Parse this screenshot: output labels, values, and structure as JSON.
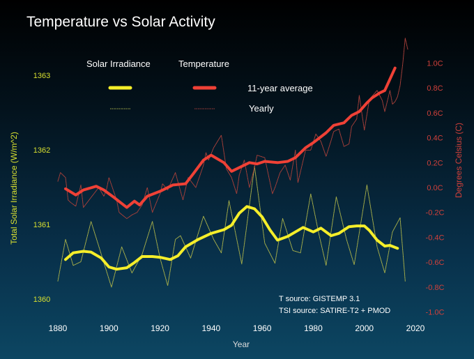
{
  "chart_data": {
    "type": "line",
    "title": "Temperature vs Solar Activity",
    "xlabel": "Year",
    "ylabel_left": "Total Solar Irradiance (W/m^2)",
    "ylabel_right": "Degrees Celsius (C)",
    "xlim": [
      1875,
      2020
    ],
    "x_ticks": [
      "1880",
      "1900",
      "1920",
      "1940",
      "1960",
      "1980",
      "2000",
      "2020"
    ],
    "ylim_left": [
      1359.8,
      1363.3
    ],
    "y_ticks_left": [
      "1360",
      "1361",
      "1362",
      "1363"
    ],
    "ylim_right": [
      -1.1,
      1.2
    ],
    "y_ticks_right": [
      "1.0C",
      "0.8C",
      "0.6C",
      "0.4C",
      "0.2C",
      "0.0C",
      "-0.2C",
      "-0.4C",
      "-0.6C",
      "-0.8C",
      "-1.0C"
    ],
    "grid": false,
    "legend": {
      "placement": "top-left",
      "col_solar": "Solar Irradiance",
      "col_temp": "Temperature",
      "row_avg": "11-year average",
      "row_yearly": "Yearly"
    },
    "annotations": [
      "T source: GISTEMP 3.1",
      "TSI source: SATIRE-T2 + PMOD"
    ],
    "colors": {
      "solar": "#f5ee2a",
      "solar_yearly": "#a8b04a",
      "temperature": "#ef4136",
      "temperature_yearly": "#a8403a",
      "left_axis": "#d8e030",
      "right_axis": "#d0403a"
    },
    "series": [
      {
        "name": "Solar Irradiance 11-year average",
        "axis": "left",
        "x": [
          1883,
          1886,
          1890,
          1893,
          1897,
          1900,
          1903,
          1907,
          1910,
          1913,
          1917,
          1920,
          1924,
          1927,
          1930,
          1935,
          1940,
          1945,
          1948,
          1951,
          1954,
          1957,
          1960,
          1963,
          1966,
          1970,
          1973,
          1976,
          1980,
          1983,
          1987,
          1990,
          1994,
          1997,
          2000,
          2002,
          2005,
          2008,
          2010,
          2013
        ],
        "y": [
          1360.53,
          1360.62,
          1360.64,
          1360.63,
          1360.55,
          1360.43,
          1360.4,
          1360.42,
          1360.49,
          1360.57,
          1360.57,
          1360.56,
          1360.53,
          1360.58,
          1360.7,
          1360.8,
          1360.88,
          1360.93,
          1360.99,
          1361.15,
          1361.24,
          1361.21,
          1361.1,
          1360.93,
          1360.79,
          1360.84,
          1360.9,
          1360.96,
          1360.9,
          1360.95,
          1360.85,
          1360.88,
          1360.97,
          1360.98,
          1360.98,
          1360.92,
          1360.79,
          1360.71,
          1360.72,
          1360.68
        ]
      },
      {
        "name": "Solar Irradiance Yearly",
        "axis": "left",
        "x": [
          1880,
          1883,
          1886,
          1889,
          1893,
          1897,
          1901,
          1905,
          1909,
          1913,
          1917,
          1920,
          1923,
          1926,
          1928,
          1932,
          1937,
          1941,
          1944,
          1947,
          1952,
          1957,
          1961,
          1965,
          1968,
          1972,
          1975,
          1979,
          1982,
          1985,
          1989,
          1993,
          1996,
          2001,
          2005,
          2008,
          2011,
          2014,
          2016
        ],
        "y": [
          1360.24,
          1360.8,
          1360.45,
          1360.5,
          1361.04,
          1360.6,
          1360.16,
          1360.7,
          1360.35,
          1360.6,
          1361.04,
          1360.55,
          1360.18,
          1360.8,
          1360.85,
          1360.55,
          1361.11,
          1360.8,
          1360.62,
          1361.32,
          1360.47,
          1361.78,
          1360.75,
          1360.48,
          1361.08,
          1360.65,
          1360.62,
          1361.41,
          1360.9,
          1360.45,
          1361.37,
          1360.8,
          1360.46,
          1361.53,
          1360.7,
          1360.35,
          1360.9,
          1361.09,
          1360.24
        ]
      },
      {
        "name": "Temperature 11-year average",
        "axis": "right",
        "x": [
          1883,
          1887,
          1890,
          1895,
          1898,
          1902,
          1907,
          1910,
          1912,
          1915,
          1920,
          1925,
          1930,
          1933,
          1937,
          1940,
          1945,
          1948,
          1952,
          1955,
          1958,
          1961,
          1966,
          1970,
          1973,
          1977,
          1980,
          1985,
          1988,
          1992,
          1995,
          1998,
          2001,
          2003,
          2006,
          2008,
          2012
        ],
        "y": [
          -0.01,
          -0.06,
          -0.02,
          0.01,
          -0.02,
          -0.08,
          -0.16,
          -0.11,
          -0.14,
          -0.07,
          -0.03,
          0.02,
          0.03,
          0.11,
          0.22,
          0.26,
          0.2,
          0.13,
          0.17,
          0.2,
          0.19,
          0.21,
          0.2,
          0.21,
          0.24,
          0.32,
          0.36,
          0.44,
          0.5,
          0.52,
          0.58,
          0.61,
          0.68,
          0.72,
          0.76,
          0.78,
          0.96
        ]
      },
      {
        "name": "Temperature Yearly",
        "axis": "right",
        "x": [
          1880,
          1881,
          1883,
          1884,
          1885,
          1887,
          1889,
          1890,
          1893,
          1896,
          1898,
          1899,
          1900,
          1903,
          1904,
          1907,
          1909,
          1911,
          1913,
          1915,
          1917,
          1918,
          1920,
          1921,
          1923,
          1926,
          1929,
          1931,
          1934,
          1937,
          1938,
          1939,
          1941,
          1944,
          1946,
          1948,
          1950,
          1951,
          1953,
          1955,
          1957,
          1958,
          1961,
          1964,
          1965,
          1967,
          1969,
          1971,
          1973,
          1974,
          1977,
          1979,
          1981,
          1983,
          1985,
          1987,
          1988,
          1990,
          1992,
          1994,
          1995,
          1997,
          1998,
          2000,
          2002,
          2005,
          2007,
          2008,
          2010,
          2011,
          2012,
          2013,
          2014,
          2015,
          2016,
          2017
        ],
        "y": [
          0.05,
          0.12,
          0.08,
          -0.1,
          -0.12,
          -0.15,
          0.02,
          -0.16,
          -0.08,
          0.0,
          -0.07,
          -0.02,
          0.08,
          -0.1,
          -0.2,
          -0.25,
          -0.22,
          -0.2,
          -0.14,
          0.0,
          -0.2,
          -0.15,
          -0.05,
          0.03,
          -0.02,
          0.12,
          -0.1,
          0.08,
          0.0,
          0.18,
          0.28,
          0.22,
          0.32,
          0.42,
          0.15,
          0.08,
          -0.05,
          0.1,
          0.22,
          0.0,
          0.16,
          0.26,
          0.24,
          -0.05,
          0.0,
          0.12,
          0.18,
          0.06,
          0.3,
          0.04,
          0.3,
          0.3,
          0.43,
          0.37,
          0.25,
          0.38,
          0.45,
          0.47,
          0.33,
          0.35,
          0.49,
          0.55,
          0.74,
          0.46,
          0.71,
          0.78,
          0.7,
          0.61,
          0.78,
          0.67,
          0.69,
          0.73,
          0.82,
          0.99,
          1.2,
          1.11
        ]
      }
    ]
  }
}
